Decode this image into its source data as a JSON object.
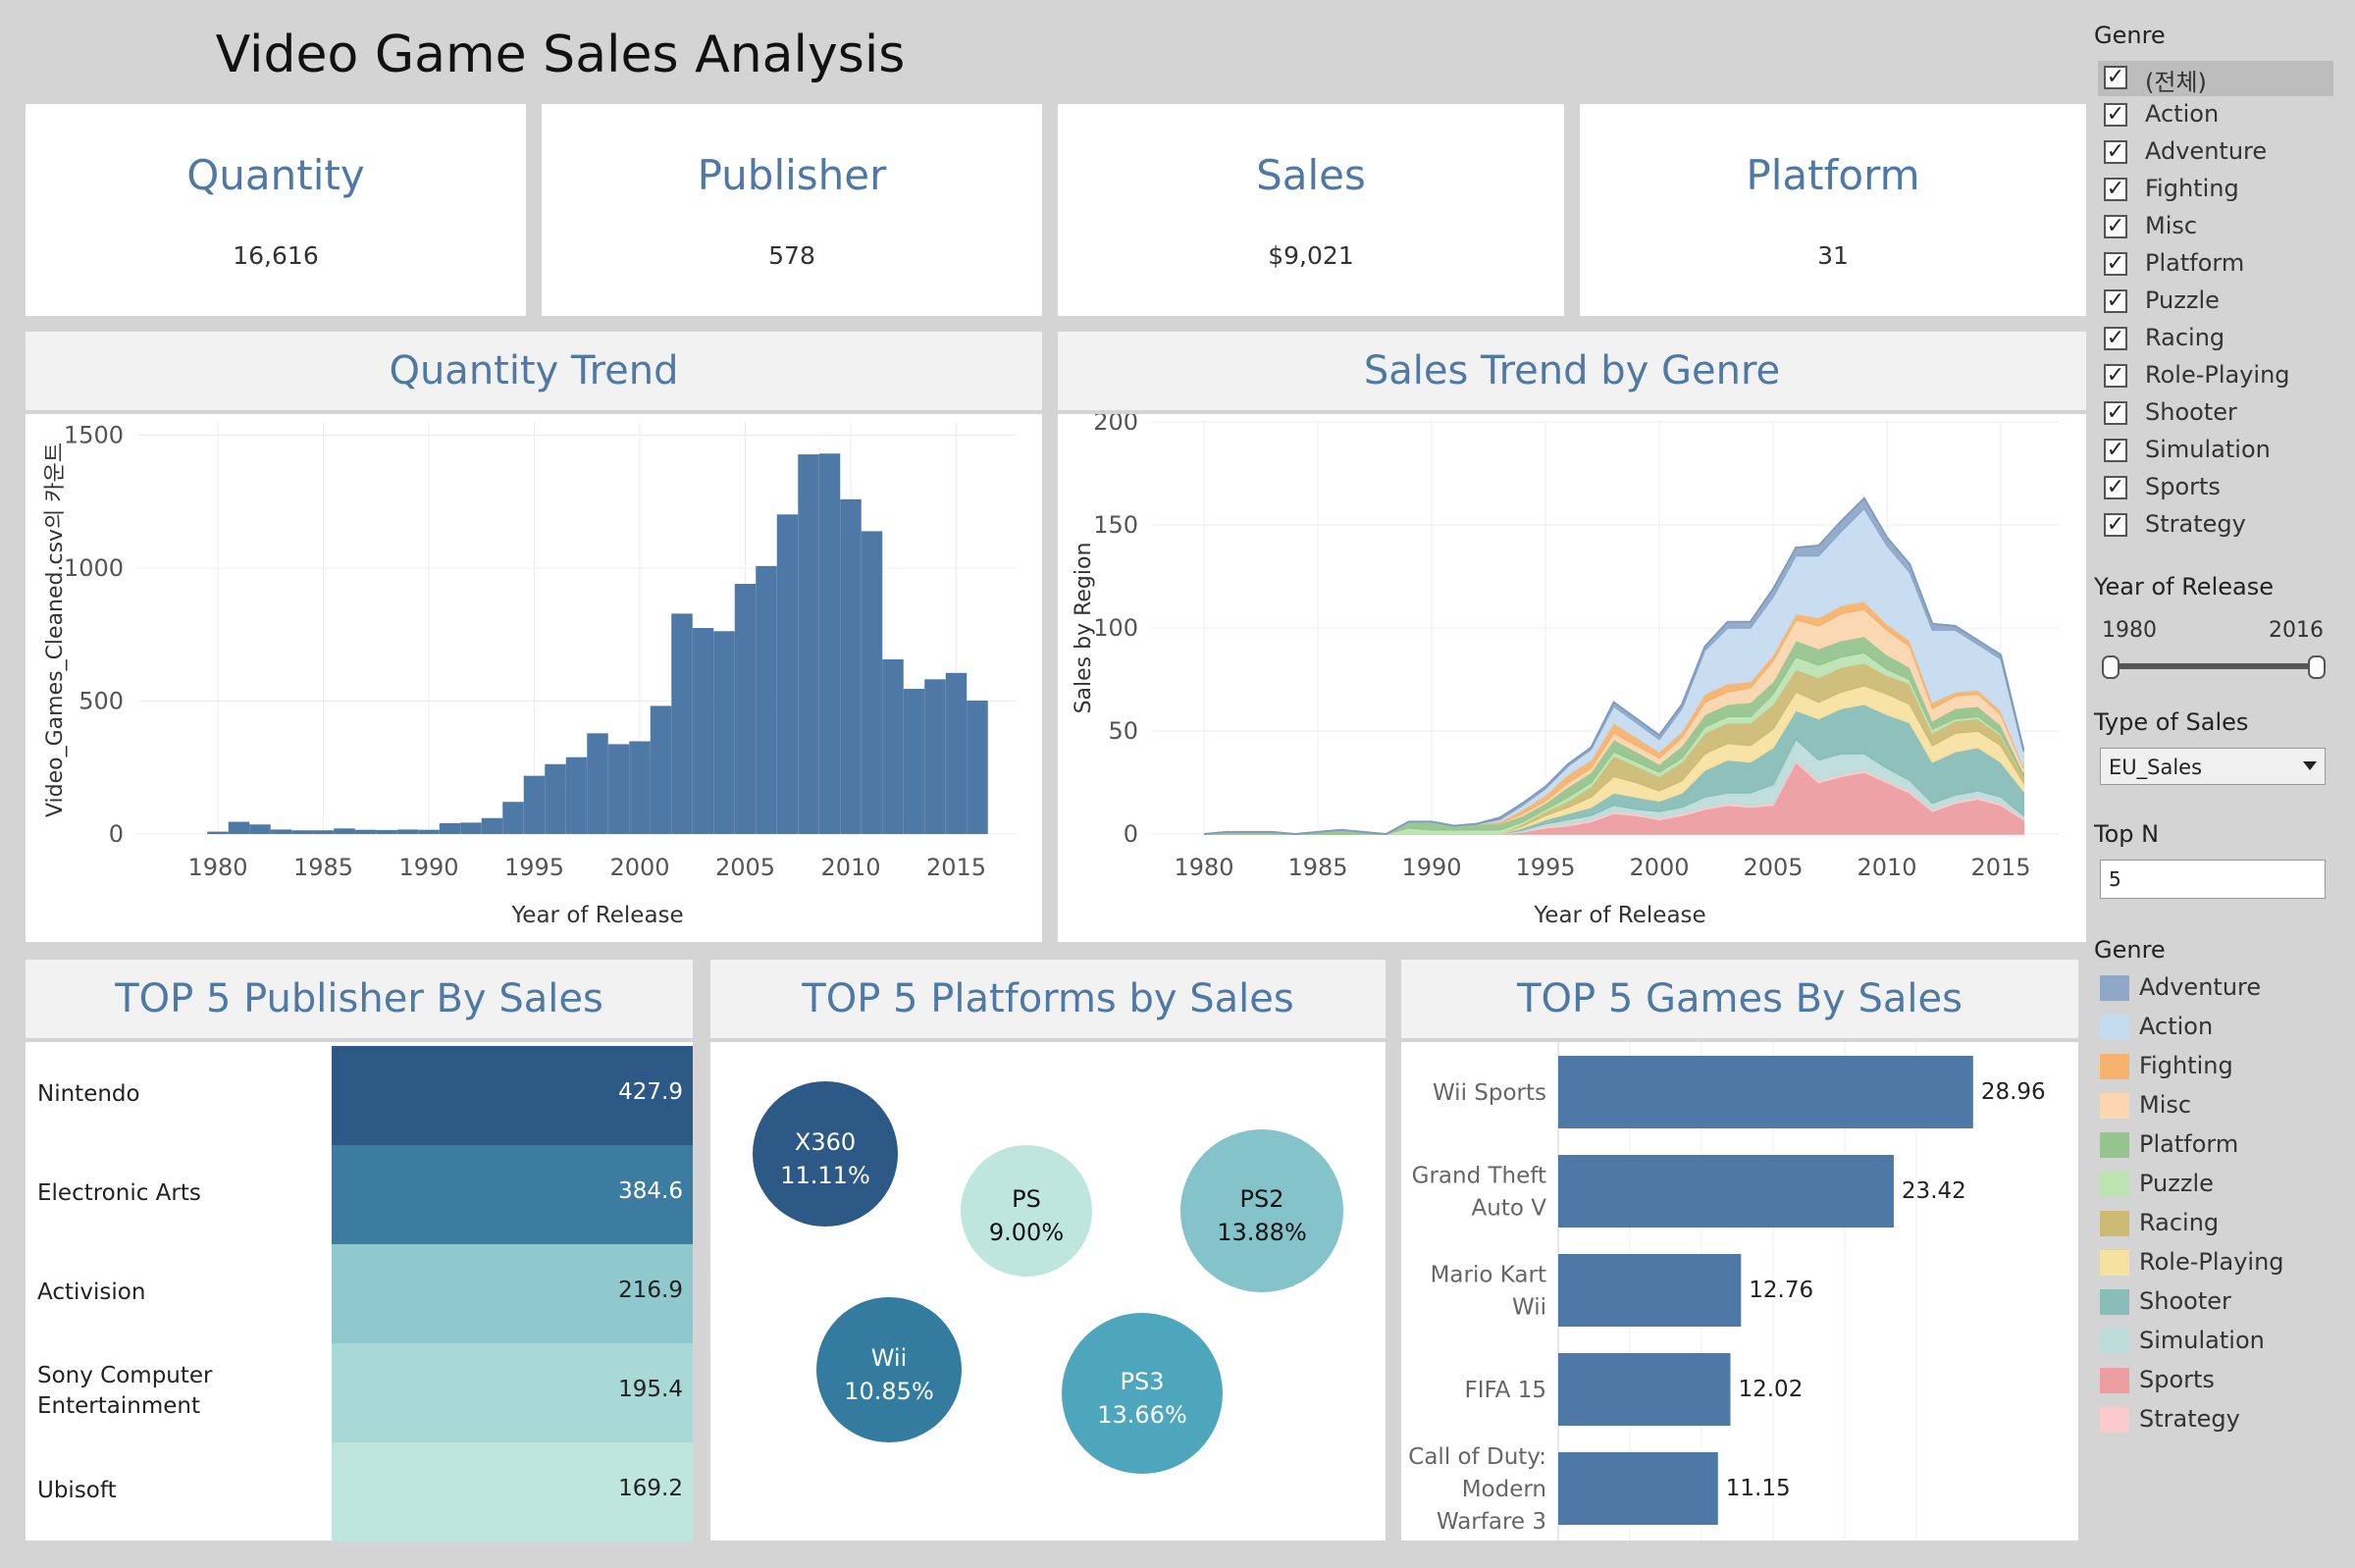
{
  "dashboard_title": "Video Game Sales Analysis",
  "kpis": [
    {
      "title": "Quantity",
      "value": "16,616"
    },
    {
      "title": "Publisher",
      "value": "578"
    },
    {
      "title": "Sales",
      "value": "$9,021"
    },
    {
      "title": "Platform",
      "value": "31"
    }
  ],
  "quantity_trend": {
    "heading": "Quantity Trend",
    "ylabel": "Video_Games_Cleaned.csv의 카운트",
    "xlabel": "Year of Release",
    "y_ticks": [
      "1500",
      "1000",
      "500",
      "0"
    ],
    "x_ticks": [
      "1980",
      "1985",
      "1990",
      "1995",
      "2000",
      "2005",
      "2010",
      "2015"
    ]
  },
  "sales_trend": {
    "heading": "Sales Trend by Genre",
    "ylabel": "Sales by Region",
    "xlabel": "Year of Release",
    "y_ticks": [
      "200",
      "150",
      "100",
      "50",
      "0"
    ],
    "x_ticks": [
      "1980",
      "1985",
      "1990",
      "1995",
      "2000",
      "2005",
      "2010",
      "2015"
    ]
  },
  "top_publishers": {
    "heading": "TOP 5 Publisher By Sales",
    "rows": [
      {
        "name": "Nintendo",
        "value": "427.9"
      },
      {
        "name": "Electronic Arts",
        "value": "384.6"
      },
      {
        "name": "Activision",
        "value": "216.9"
      },
      {
        "name": "Sony Computer Entertainment",
        "value": "195.4"
      },
      {
        "name": "Ubisoft",
        "value": "169.2"
      }
    ]
  },
  "top_platforms": {
    "heading": "TOP 5 Platforms by Sales",
    "bubbles": [
      {
        "name": "X360",
        "pct": "11.11%"
      },
      {
        "name": "PS",
        "pct": "9.00%"
      },
      {
        "name": "PS2",
        "pct": "13.88%"
      },
      {
        "name": "Wii",
        "pct": "10.85%"
      },
      {
        "name": "PS3",
        "pct": "13.66%"
      }
    ]
  },
  "top_games": {
    "heading": "TOP 5 Games By Sales",
    "rows": [
      {
        "name_lines": [
          "Wii Sports"
        ],
        "value": "28.96"
      },
      {
        "name_lines": [
          "Grand Theft",
          "Auto V"
        ],
        "value": "23.42"
      },
      {
        "name_lines": [
          "Mario Kart",
          "Wii"
        ],
        "value": "12.76"
      },
      {
        "name_lines": [
          "FIFA 15"
        ],
        "value": "12.02"
      },
      {
        "name_lines": [
          "Call of Duty:",
          "Modern",
          "Warfare 3"
        ],
        "value": "11.15"
      }
    ]
  },
  "filters": {
    "genre_title": "Genre",
    "genre_options": [
      "(전체)",
      "Action",
      "Adventure",
      "Fighting",
      "Misc",
      "Platform",
      "Puzzle",
      "Racing",
      "Role-Playing",
      "Shooter",
      "Simulation",
      "Sports",
      "Strategy"
    ],
    "year_title": "Year of Release",
    "year_min": "1980",
    "year_max": "2016",
    "sales_type_title": "Type of Sales",
    "sales_type_value": "EU_Sales",
    "topn_title": "Top N",
    "topn_value": "5"
  },
  "legend": {
    "title": "Genre",
    "items": [
      {
        "name": "Adventure",
        "color": "#8fa8c8"
      },
      {
        "name": "Action",
        "color": "#c5dcef"
      },
      {
        "name": "Fighting",
        "color": "#f7b36d"
      },
      {
        "name": "Misc",
        "color": "#fbd6b0"
      },
      {
        "name": "Platform",
        "color": "#96c48e"
      },
      {
        "name": "Puzzle",
        "color": "#bde3b3"
      },
      {
        "name": "Racing",
        "color": "#cdbb75"
      },
      {
        "name": "Role-Playing",
        "color": "#f6e1a0"
      },
      {
        "name": "Shooter",
        "color": "#88bdb8"
      },
      {
        "name": "Simulation",
        "color": "#bddcda"
      },
      {
        "name": "Sports",
        "color": "#ec9ea1"
      },
      {
        "name": "Strategy",
        "color": "#fbcacb"
      }
    ]
  },
  "colors": {
    "accent": "#4e79a7",
    "panel_bg": "#ffffff",
    "page_bg": "#d4d4d4"
  },
  "chart_data": [
    {
      "type": "bar",
      "title": "Quantity Trend",
      "xlabel": "Year of Release",
      "ylabel": "Video_Games_Cleaned.csv의 카운트",
      "x": [
        1980,
        1981,
        1982,
        1983,
        1984,
        1985,
        1986,
        1987,
        1988,
        1989,
        1990,
        1991,
        1992,
        1993,
        1994,
        1995,
        1996,
        1997,
        1998,
        1999,
        2000,
        2001,
        2002,
        2003,
        2004,
        2005,
        2006,
        2007,
        2008,
        2009,
        2010,
        2011,
        2012,
        2013,
        2014,
        2015,
        2016
      ],
      "values": [
        9,
        46,
        36,
        17,
        14,
        14,
        21,
        16,
        15,
        17,
        16,
        41,
        43,
        60,
        121,
        219,
        263,
        289,
        379,
        338,
        349,
        482,
        829,
        775,
        763,
        941,
        1008,
        1202,
        1428,
        1431,
        1259,
        1139,
        657,
        546,
        582,
        606,
        502
      ],
      "ylim": [
        0,
        1550
      ],
      "grid": true
    },
    {
      "type": "area",
      "title": "Sales Trend by Genre",
      "xlabel": "Year of Release",
      "ylabel": "Sales by Region",
      "ylim": [
        0,
        200
      ],
      "x": [
        1980,
        1981,
        1982,
        1983,
        1984,
        1985,
        1986,
        1987,
        1988,
        1989,
        1990,
        1991,
        1992,
        1993,
        1994,
        1995,
        1996,
        1997,
        1998,
        1999,
        2000,
        2001,
        2002,
        2003,
        2004,
        2005,
        2006,
        2007,
        2008,
        2009,
        2010,
        2011,
        2012,
        2013,
        2014,
        2015,
        2016
      ],
      "series": [
        {
          "name": "Sports",
          "values": [
            0,
            0,
            0,
            0,
            0,
            0,
            0,
            0,
            0,
            0,
            0,
            0,
            0,
            0,
            1,
            3,
            4,
            6,
            10,
            9,
            7,
            9,
            12,
            14,
            13,
            14,
            35,
            25,
            28,
            30,
            25,
            20,
            11,
            15,
            17,
            14,
            7
          ]
        },
        {
          "name": "Strategy",
          "values": [
            0,
            0,
            0,
            0,
            0,
            0,
            0,
            0,
            0,
            0,
            0,
            0,
            0,
            0,
            0,
            1,
            1,
            1,
            1,
            1,
            1,
            1,
            1,
            1,
            1,
            1,
            1,
            1,
            1,
            1,
            1,
            1,
            1,
            1,
            1,
            1,
            1
          ]
        },
        {
          "name": "Simulation",
          "values": [
            0,
            0,
            0,
            0,
            0,
            0,
            0,
            0,
            0,
            0,
            0,
            0,
            0,
            0,
            1,
            1,
            2,
            2,
            3,
            2,
            3,
            3,
            5,
            5,
            6,
            9,
            10,
            10,
            10,
            8,
            6,
            5,
            3,
            3,
            3,
            3,
            1
          ]
        },
        {
          "name": "Shooter",
          "values": [
            0,
            0,
            0,
            0,
            0,
            0,
            0,
            0,
            0,
            0,
            0,
            0,
            0,
            0,
            1,
            2,
            3,
            4,
            6,
            6,
            5,
            7,
            13,
            16,
            15,
            18,
            14,
            20,
            22,
            24,
            26,
            28,
            20,
            21,
            21,
            17,
            12
          ]
        },
        {
          "name": "Role-Playing",
          "values": [
            0,
            0,
            0,
            0,
            0,
            0,
            0,
            0,
            0,
            0,
            0,
            0,
            0,
            0,
            1,
            2,
            3,
            5,
            8,
            7,
            5,
            6,
            8,
            8,
            8,
            9,
            9,
            8,
            8,
            9,
            10,
            9,
            8,
            9,
            8,
            8,
            4
          ]
        },
        {
          "name": "Racing",
          "values": [
            0,
            0,
            0,
            0,
            0,
            0,
            0,
            0,
            0,
            0,
            0,
            0,
            0,
            0,
            1,
            2,
            3,
            5,
            10,
            8,
            7,
            9,
            10,
            10,
            11,
            12,
            11,
            12,
            12,
            11,
            9,
            10,
            6,
            6,
            6,
            5,
            3
          ]
        },
        {
          "name": "Puzzle",
          "values": [
            0,
            0,
            0,
            0,
            0,
            0,
            0,
            0,
            0,
            3,
            2,
            2,
            2,
            2,
            1,
            1,
            2,
            2,
            2,
            2,
            2,
            2,
            3,
            3,
            3,
            5,
            6,
            6,
            5,
            5,
            3,
            2,
            2,
            1,
            1,
            1,
            0
          ]
        },
        {
          "name": "Platform",
          "values": [
            0,
            1,
            1,
            1,
            0,
            1,
            2,
            1,
            0,
            3,
            4,
            2,
            3,
            3,
            3,
            3,
            5,
            5,
            6,
            5,
            4,
            6,
            6,
            6,
            7,
            6,
            8,
            8,
            8,
            8,
            7,
            6,
            4,
            5,
            5,
            4,
            2
          ]
        },
        {
          "name": "Misc",
          "values": [
            0,
            0,
            0,
            0,
            0,
            0,
            0,
            0,
            0,
            0,
            0,
            0,
            0,
            0,
            1,
            1,
            2,
            2,
            3,
            3,
            3,
            4,
            6,
            6,
            7,
            10,
            10,
            11,
            13,
            13,
            12,
            10,
            6,
            6,
            6,
            5,
            2
          ]
        },
        {
          "name": "Fighting",
          "values": [
            0,
            0,
            0,
            0,
            0,
            0,
            0,
            0,
            0,
            0,
            0,
            0,
            0,
            1,
            2,
            3,
            4,
            4,
            5,
            4,
            3,
            3,
            4,
            4,
            3,
            3,
            3,
            4,
            4,
            4,
            3,
            3,
            3,
            2,
            2,
            2,
            1
          ]
        },
        {
          "name": "Action",
          "values": [
            0,
            0,
            0,
            0,
            0,
            0,
            0,
            0,
            0,
            0,
            0,
            0,
            0,
            1,
            2,
            3,
            4,
            5,
            8,
            7,
            6,
            11,
            21,
            27,
            26,
            28,
            28,
            30,
            36,
            45,
            38,
            33,
            35,
            30,
            22,
            25,
            7
          ]
        },
        {
          "name": "Adventure",
          "values": [
            0,
            0,
            0,
            0,
            0,
            0,
            0,
            0,
            0,
            0,
            0,
            0,
            0,
            1,
            1,
            1,
            1,
            1,
            2,
            2,
            2,
            2,
            2,
            3,
            3,
            4,
            4,
            5,
            5,
            5,
            4,
            4,
            3,
            2,
            2,
            2,
            1
          ]
        }
      ]
    },
    {
      "type": "table",
      "title": "TOP 5 Publisher By Sales",
      "categories": [
        "Nintendo",
        "Electronic Arts",
        "Activision",
        "Sony Computer Entertainment",
        "Ubisoft"
      ],
      "values": [
        427.9,
        384.6,
        216.9,
        195.4,
        169.2
      ]
    },
    {
      "type": "pie",
      "title": "TOP 5 Platforms by Sales",
      "categories": [
        "X360",
        "PS",
        "PS2",
        "Wii",
        "PS3"
      ],
      "values": [
        11.11,
        9.0,
        13.88,
        10.85,
        13.66
      ]
    },
    {
      "type": "bar",
      "title": "TOP 5 Games By Sales",
      "categories": [
        "Wii Sports",
        "Grand Theft Auto V",
        "Mario Kart Wii",
        "FIFA 15",
        "Call of Duty: Modern Warfare 3"
      ],
      "values": [
        28.96,
        23.42,
        12.76,
        12.02,
        11.15
      ],
      "xlim": [
        0,
        31
      ]
    }
  ]
}
